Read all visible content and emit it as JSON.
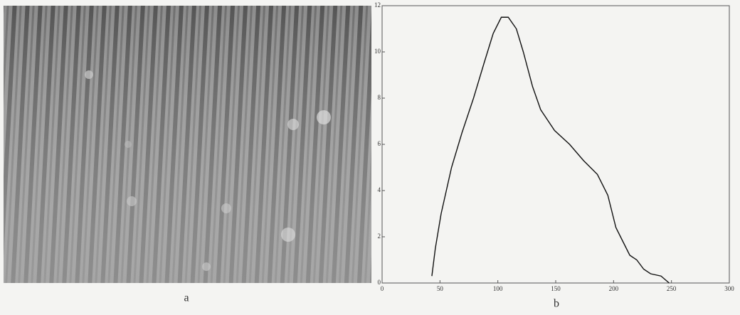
{
  "figure": {
    "image_caption": "a"
  },
  "chart_data": {
    "type": "line",
    "caption": "b",
    "x": [
      43,
      46,
      51,
      60,
      69,
      79,
      88,
      96,
      103,
      109,
      116,
      122,
      130,
      137,
      149,
      162,
      174,
      186,
      195,
      202,
      208,
      214,
      220,
      226,
      232,
      241,
      248
    ],
    "series": [
      {
        "color": "#111111",
        "values": [
          0.3,
          1.5,
          3,
          5,
          6.5,
          8,
          9.5,
          10.8,
          11.5,
          11.5,
          11,
          10,
          8.5,
          7.5,
          6.6,
          6.0,
          5.3,
          4.7,
          3.8,
          2.4,
          1.8,
          1.2,
          1.0,
          0.6,
          0.4,
          0.3,
          0
        ]
      }
    ],
    "xlim": [
      0,
      300
    ],
    "xticks": [
      0,
      50,
      100,
      150,
      200,
      250,
      300
    ],
    "ylim": [
      0,
      12
    ],
    "yticks": [
      0,
      2,
      4,
      6,
      8,
      10,
      12
    ]
  }
}
